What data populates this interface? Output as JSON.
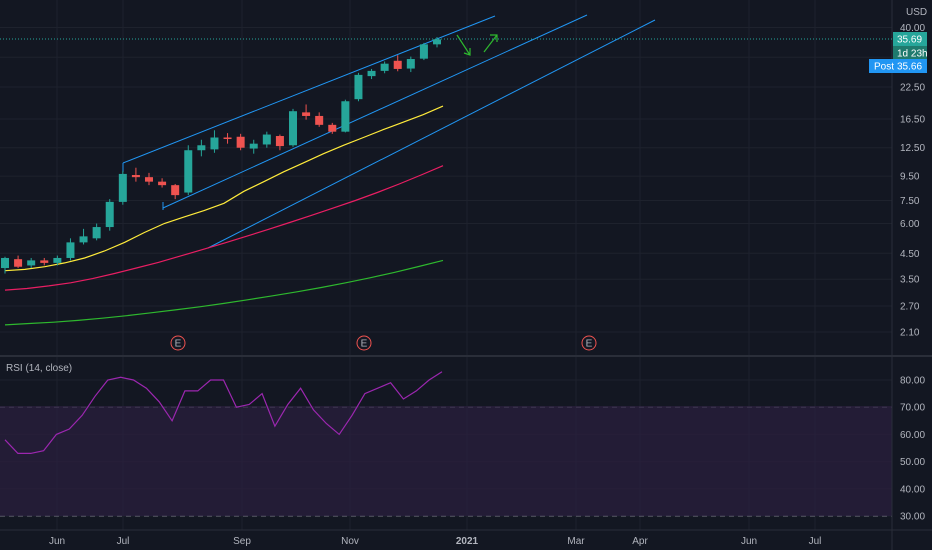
{
  "currency": "USD",
  "price_tags": {
    "last": "35.69",
    "countdown": "1d 23h",
    "post_label": "Post",
    "post": "35.66"
  },
  "colors": {
    "bg": "#131722",
    "up": "#26a69a",
    "down": "#ef5350",
    "channel": "#2196f3",
    "ma_fast": "#ffeb3b",
    "ma_mid": "#e91e63",
    "ma_slow": "#2eb82e",
    "rsi": "#9c27b0",
    "rsi_band": "#2a1f3d"
  },
  "chart_data": [
    {
      "type": "candlestick",
      "y_scale": "log",
      "ylim": [
        1.7,
        46
      ],
      "y_ticks": [
        "1.70",
        "2.10",
        "2.70",
        "3.50",
        "4.50",
        "6.00",
        "7.50",
        "9.50",
        "12.50",
        "16.50",
        "22.50",
        "30.00",
        "40.00"
      ],
      "y_ticks_visible": [
        "2.10",
        "2.70",
        "3.50",
        "4.50",
        "6.00",
        "7.50",
        "9.50",
        "12.50",
        "16.50",
        "22.50"
      ],
      "x_axis_labels": [
        "Jun",
        "Jul",
        "Sep",
        "Nov",
        "2021",
        "Mar",
        "Apr",
        "Jun",
        "Jul"
      ],
      "candles": [
        {
          "o": 3.9,
          "h": 4.35,
          "l": 3.7,
          "c": 4.3
        },
        {
          "o": 4.25,
          "h": 4.4,
          "l": 3.9,
          "c": 3.95
        },
        {
          "o": 4.0,
          "h": 4.3,
          "l": 3.9,
          "c": 4.2
        },
        {
          "o": 4.2,
          "h": 4.3,
          "l": 4.0,
          "c": 4.1
        },
        {
          "o": 4.1,
          "h": 4.4,
          "l": 4.0,
          "c": 4.3
        },
        {
          "o": 4.3,
          "h": 5.2,
          "l": 4.2,
          "c": 5.0
        },
        {
          "o": 5.0,
          "h": 5.7,
          "l": 4.9,
          "c": 5.3
        },
        {
          "o": 5.2,
          "h": 6.0,
          "l": 5.1,
          "c": 5.8
        },
        {
          "o": 5.8,
          "h": 7.6,
          "l": 5.6,
          "c": 7.4
        },
        {
          "o": 7.4,
          "h": 10.0,
          "l": 7.2,
          "c": 9.7
        },
        {
          "o": 9.6,
          "h": 10.3,
          "l": 9.0,
          "c": 9.4
        },
        {
          "o": 9.4,
          "h": 9.8,
          "l": 8.7,
          "c": 9.0
        },
        {
          "o": 9.0,
          "h": 9.3,
          "l": 8.5,
          "c": 8.7
        },
        {
          "o": 8.7,
          "h": 8.8,
          "l": 7.6,
          "c": 7.9
        },
        {
          "o": 8.1,
          "h": 12.8,
          "l": 7.9,
          "c": 12.2
        },
        {
          "o": 12.2,
          "h": 13.5,
          "l": 11.5,
          "c": 12.8
        },
        {
          "o": 12.3,
          "h": 14.8,
          "l": 11.9,
          "c": 13.8
        },
        {
          "o": 13.8,
          "h": 14.4,
          "l": 13.0,
          "c": 13.6
        },
        {
          "o": 13.9,
          "h": 14.3,
          "l": 12.2,
          "c": 12.5
        },
        {
          "o": 12.4,
          "h": 13.5,
          "l": 11.8,
          "c": 13.0
        },
        {
          "o": 12.9,
          "h": 14.6,
          "l": 12.5,
          "c": 14.2
        },
        {
          "o": 14.0,
          "h": 14.2,
          "l": 12.2,
          "c": 12.7
        },
        {
          "o": 12.8,
          "h": 18.2,
          "l": 12.6,
          "c": 17.8
        },
        {
          "o": 17.6,
          "h": 19.0,
          "l": 16.4,
          "c": 17.0
        },
        {
          "o": 17.0,
          "h": 17.6,
          "l": 15.3,
          "c": 15.6
        },
        {
          "o": 15.6,
          "h": 15.9,
          "l": 14.3,
          "c": 14.6
        },
        {
          "o": 14.6,
          "h": 19.9,
          "l": 14.5,
          "c": 19.6
        },
        {
          "o": 20.0,
          "h": 25.8,
          "l": 19.6,
          "c": 25.3
        },
        {
          "o": 25.0,
          "h": 26.8,
          "l": 24.3,
          "c": 26.3
        },
        {
          "o": 26.3,
          "h": 28.8,
          "l": 25.7,
          "c": 28.2
        },
        {
          "o": 29.0,
          "h": 30.6,
          "l": 26.2,
          "c": 26.8
        },
        {
          "o": 26.9,
          "h": 30.2,
          "l": 26.0,
          "c": 29.5
        },
        {
          "o": 29.6,
          "h": 34.5,
          "l": 29.2,
          "c": 34.0
        },
        {
          "o": 34.0,
          "h": 36.5,
          "l": 33.0,
          "c": 35.69
        }
      ],
      "moving_averages": [
        {
          "color_key": "ma_fast",
          "points": [
            3.8,
            3.85,
            3.95,
            4.1,
            4.3,
            4.6,
            5.0,
            5.5,
            6.0,
            6.4,
            6.8,
            7.3,
            8.2,
            9.0,
            9.9,
            10.8,
            11.8,
            12.8,
            13.8,
            14.9,
            16.0,
            17.2,
            18.7
          ]
        },
        {
          "color_key": "ma_mid",
          "points": [
            3.15,
            3.2,
            3.28,
            3.38,
            3.52,
            3.7,
            3.9,
            4.12,
            4.38,
            4.66,
            4.96,
            5.3,
            5.66,
            6.06,
            6.5,
            6.98,
            7.5,
            8.1,
            8.8,
            9.6,
            10.5
          ]
        },
        {
          "color_key": "ma_slow",
          "points": [
            2.25,
            2.28,
            2.31,
            2.35,
            2.4,
            2.46,
            2.53,
            2.6,
            2.68,
            2.77,
            2.87,
            2.98,
            3.1,
            3.23,
            3.38,
            3.55,
            3.74,
            3.96,
            4.2
          ]
        }
      ],
      "earnings_markers": [
        "E",
        "E",
        "E"
      ]
    },
    {
      "type": "line",
      "title": "RSI (14, close)",
      "ylim": [
        27,
        86
      ],
      "y_ticks": [
        "30.00",
        "40.00",
        "50.00",
        "60.00",
        "70.00",
        "80.00"
      ],
      "bands": [
        30,
        70
      ],
      "values": [
        58,
        53,
        53,
        54,
        60,
        62,
        67,
        74,
        80,
        81,
        80,
        77,
        72,
        65,
        76,
        76,
        80,
        80,
        70,
        71,
        75,
        63,
        71,
        77,
        69,
        64,
        60,
        67,
        75,
        77,
        79,
        73,
        76,
        80,
        83
      ]
    }
  ]
}
